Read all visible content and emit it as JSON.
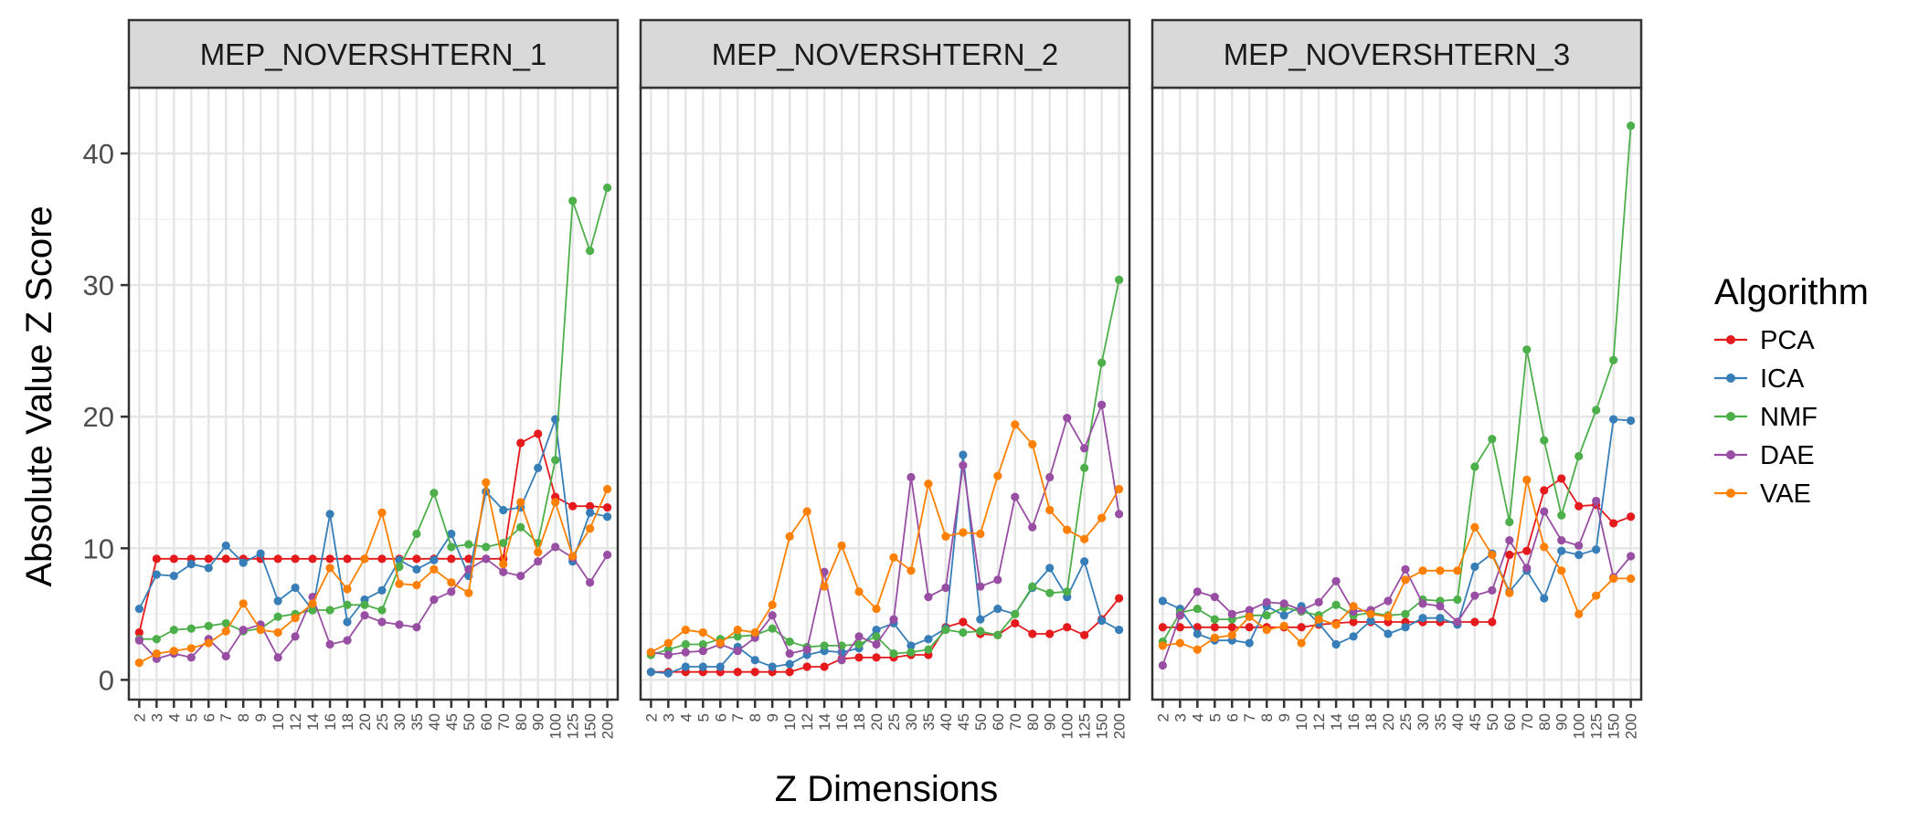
{
  "chart_data": {
    "type": "line",
    "x": [
      "2",
      "3",
      "4",
      "5",
      "6",
      "7",
      "8",
      "9",
      "10",
      "12",
      "14",
      "16",
      "18",
      "20",
      "25",
      "30",
      "35",
      "40",
      "45",
      "50",
      "60",
      "70",
      "80",
      "90",
      "100",
      "125",
      "150",
      "200"
    ],
    "xlabel": "Z Dimensions",
    "ylabel": "Absolute Value Z Score",
    "ylim": [
      -1.5,
      45
    ],
    "yticks": [
      "0",
      "10",
      "20",
      "30",
      "40"
    ],
    "grid": true,
    "legend": {
      "title": "Algorithm",
      "placement": "right"
    },
    "colors": {
      "PCA": "#e41a1c",
      "ICA": "#377eb8",
      "NMF": "#4daf4a",
      "DAE": "#984ea3",
      "VAE": "#ff7f00"
    },
    "panels": [
      {
        "title": "MEP_NOVERSHTERN_1",
        "series": [
          {
            "name": "PCA",
            "values": [
              3.6,
              9.2,
              9.2,
              9.2,
              9.2,
              9.2,
              9.2,
              9.2,
              9.2,
              9.2,
              9.2,
              9.2,
              9.2,
              9.2,
              9.2,
              9.2,
              9.2,
              9.2,
              9.2,
              9.2,
              9.2,
              9.2,
              18.0,
              18.7,
              13.9,
              13.2,
              13.2,
              13.1
            ]
          },
          {
            "name": "ICA",
            "values": [
              5.4,
              8.0,
              7.9,
              8.8,
              8.5,
              10.2,
              8.9,
              9.6,
              6.0,
              7.0,
              5.3,
              12.6,
              4.4,
              6.1,
              6.8,
              9.1,
              8.4,
              9.1,
              11.1,
              7.9,
              14.3,
              12.9,
              13.1,
              16.1,
              19.8,
              9.0,
              12.7,
              12.4
            ]
          },
          {
            "name": "NMF",
            "values": [
              3.1,
              3.1,
              3.8,
              3.9,
              4.1,
              4.3,
              3.7,
              3.9,
              4.8,
              5.0,
              5.3,
              5.3,
              5.7,
              5.7,
              5.3,
              8.6,
              11.1,
              14.2,
              10.1,
              10.3,
              10.1,
              10.4,
              11.6,
              10.4,
              16.7,
              36.4,
              32.6,
              37.4
            ]
          },
          {
            "name": "DAE",
            "values": [
              3.0,
              1.6,
              2.0,
              1.7,
              3.1,
              1.8,
              3.8,
              4.2,
              1.7,
              3.3,
              6.3,
              2.7,
              3.0,
              4.9,
              4.4,
              4.2,
              4.0,
              6.1,
              6.7,
              8.4,
              9.2,
              8.2,
              7.9,
              9.0,
              10.1,
              9.3,
              7.4,
              9.5
            ]
          },
          {
            "name": "VAE",
            "values": [
              1.3,
              2.0,
              2.2,
              2.4,
              2.8,
              3.7,
              5.8,
              3.8,
              3.6,
              4.7,
              5.8,
              8.5,
              6.9,
              9.2,
              12.7,
              7.3,
              7.2,
              8.4,
              7.4,
              6.6,
              15.0,
              8.8,
              13.5,
              9.7,
              13.5,
              9.4,
              11.5,
              14.5
            ]
          }
        ]
      },
      {
        "title": "MEP_NOVERSHTERN_2",
        "series": [
          {
            "name": "PCA",
            "values": [
              0.6,
              0.6,
              0.6,
              0.6,
              0.6,
              0.6,
              0.6,
              0.6,
              0.6,
              1.0,
              1.0,
              1.6,
              1.7,
              1.7,
              1.7,
              1.9,
              1.9,
              4.0,
              4.4,
              3.5,
              3.4,
              4.3,
              3.5,
              3.5,
              4.0,
              3.4,
              4.6,
              6.2
            ]
          },
          {
            "name": "ICA",
            "values": [
              0.6,
              0.5,
              1.0,
              1.0,
              1.0,
              2.5,
              1.5,
              1.0,
              1.2,
              1.9,
              2.2,
              2.1,
              2.4,
              3.8,
              4.3,
              2.6,
              3.1,
              3.9,
              17.1,
              4.6,
              5.4,
              5.0,
              7.0,
              8.5,
              6.3,
              9.0,
              4.5,
              3.8
            ]
          },
          {
            "name": "NMF",
            "values": [
              1.9,
              2.3,
              2.7,
              2.7,
              3.1,
              3.3,
              3.4,
              3.9,
              2.9,
              2.5,
              2.6,
              2.6,
              2.7,
              3.3,
              2.0,
              2.1,
              2.3,
              3.8,
              3.6,
              3.7,
              3.4,
              5.0,
              7.1,
              6.6,
              6.7,
              16.1,
              24.1,
              30.4
            ]
          },
          {
            "name": "DAE",
            "values": [
              2.1,
              1.9,
              2.1,
              2.2,
              2.7,
              2.2,
              3.2,
              4.9,
              2.0,
              2.3,
              8.2,
              1.5,
              3.3,
              2.7,
              4.6,
              15.4,
              6.3,
              7.0,
              16.3,
              7.1,
              7.6,
              13.9,
              11.6,
              15.4,
              19.9,
              17.6,
              20.9,
              12.6
            ]
          },
          {
            "name": "VAE",
            "values": [
              2.1,
              2.8,
              3.8,
              3.6,
              2.8,
              3.8,
              3.6,
              5.7,
              10.9,
              12.8,
              7.1,
              10.2,
              6.7,
              5.4,
              9.3,
              8.3,
              14.9,
              10.9,
              11.2,
              11.1,
              15.5,
              19.4,
              17.9,
              12.9,
              11.4,
              10.7,
              12.3,
              14.5
            ]
          }
        ]
      },
      {
        "title": "MEP_NOVERSHTERN_3",
        "series": [
          {
            "name": "PCA",
            "values": [
              4.0,
              4.0,
              4.0,
              4.0,
              4.0,
              4.0,
              4.0,
              4.0,
              4.0,
              4.2,
              4.3,
              4.4,
              4.4,
              4.4,
              4.4,
              4.4,
              4.4,
              4.4,
              4.4,
              4.4,
              9.5,
              9.8,
              14.4,
              15.3,
              13.2,
              13.3,
              11.9,
              12.4
            ]
          },
          {
            "name": "ICA",
            "values": [
              6.0,
              5.4,
              3.5,
              3.0,
              3.0,
              2.8,
              5.6,
              4.9,
              5.6,
              4.3,
              2.7,
              3.3,
              4.5,
              3.5,
              4.0,
              4.7,
              4.7,
              4.2,
              8.6,
              9.6,
              6.7,
              8.3,
              6.2,
              9.8,
              9.5,
              9.9,
              19.8,
              19.7
            ]
          },
          {
            "name": "NMF",
            "values": [
              2.9,
              5.1,
              5.4,
              4.6,
              4.6,
              4.9,
              4.9,
              5.5,
              5.2,
              4.9,
              5.7,
              4.9,
              5.1,
              4.9,
              5.0,
              6.1,
              6.0,
              6.1,
              16.2,
              18.3,
              12.0,
              25.1,
              18.2,
              12.5,
              17.0,
              20.5,
              24.3,
              42.1
            ]
          },
          {
            "name": "DAE",
            "values": [
              1.1,
              4.9,
              6.7,
              6.3,
              5.0,
              5.3,
              5.9,
              5.8,
              5.3,
              5.9,
              7.5,
              5.2,
              5.3,
              6.0,
              8.4,
              5.8,
              5.6,
              4.4,
              6.4,
              6.8,
              10.6,
              8.5,
              12.8,
              10.6,
              10.2,
              13.6,
              7.8,
              9.4
            ]
          },
          {
            "name": "VAE",
            "values": [
              2.6,
              2.8,
              2.3,
              3.2,
              3.4,
              4.8,
              3.8,
              4.1,
              2.8,
              4.6,
              4.2,
              5.6,
              5.0,
              4.8,
              7.6,
              8.3,
              8.3,
              8.3,
              11.6,
              9.5,
              6.6,
              15.2,
              10.1,
              8.3,
              5.0,
              6.4,
              7.7,
              7.7
            ]
          }
        ]
      }
    ]
  }
}
